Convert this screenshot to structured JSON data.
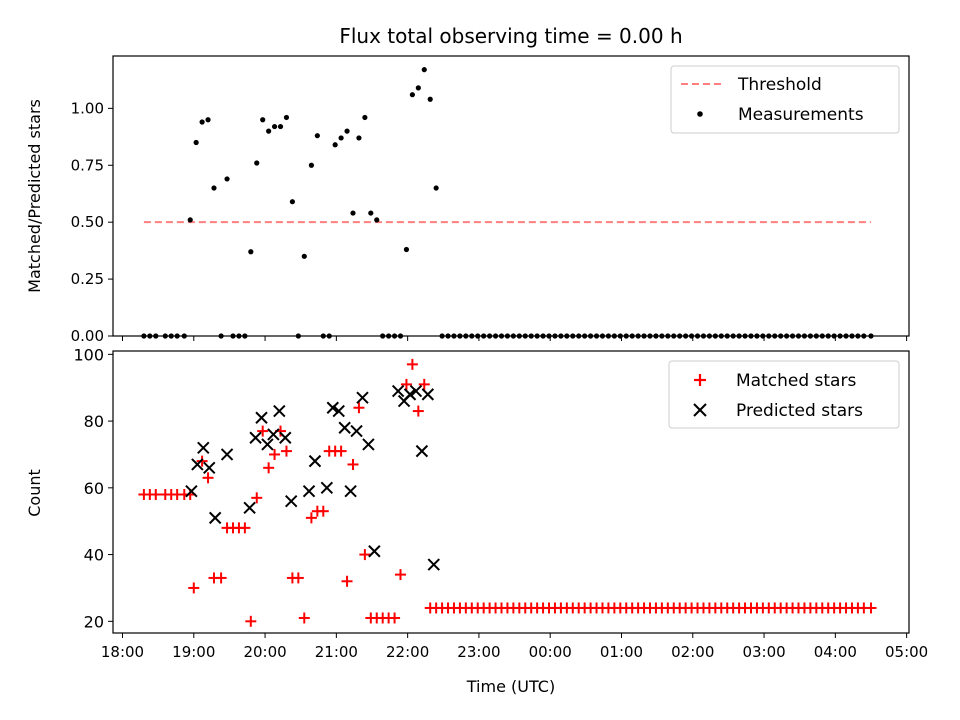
{
  "chart_data": [
    {
      "type": "scatter",
      "title": "Flux total observing time = 0.00 h",
      "xlabel": "",
      "ylabel": "Matched/Predicted stars",
      "xlim": [
        "17:52",
        "05:02"
      ],
      "ylim": [
        0.0,
        1.23
      ],
      "yticks": [
        0.0,
        0.25,
        0.5,
        0.75,
        1.0
      ],
      "ytick_labels": [
        "0.00",
        "0.25",
        "0.50",
        "0.75",
        "1.00"
      ],
      "grid": false,
      "legend_position": "top-right",
      "colors": {
        "threshold": "#ff7f7f",
        "measurements": "#000000"
      },
      "series": [
        {
          "name": "Threshold",
          "kind": "dashed-line",
          "color": "#ff7f7f",
          "x": [
            "18:18",
            "04:30"
          ],
          "y": [
            0.5,
            0.5
          ]
        },
        {
          "name": "Measurements",
          "kind": "dot",
          "color": "#000000",
          "x": [
            "18:18",
            "18:23",
            "18:28",
            "18:36",
            "18:41",
            "18:46",
            "18:52",
            "18:57",
            "19:02",
            "19:07",
            "19:12",
            "19:17",
            "19:23",
            "19:28",
            "19:33",
            "19:38",
            "19:43",
            "19:48",
            "19:53",
            "19:58",
            "20:03",
            "20:08",
            "20:13",
            "20:18",
            "20:23",
            "20:28",
            "20:33",
            "20:39",
            "20:44",
            "20:49",
            "20:54",
            "20:59",
            "21:04",
            "21:09",
            "21:14",
            "21:19",
            "21:24",
            "21:29",
            "21:34",
            "21:39",
            "21:44",
            "21:49",
            "21:54",
            "21:59",
            "22:04",
            "22:09",
            "22:14",
            "22:19",
            "22:24",
            "22:29",
            "22:34",
            "22:39",
            "22:44",
            "22:49",
            "22:54",
            "22:59",
            "23:04",
            "23:09",
            "23:14",
            "23:19",
            "23:24",
            "23:29",
            "23:34",
            "23:39",
            "23:44",
            "23:49",
            "23:54",
            "23:59",
            "00:04",
            "00:09",
            "00:14",
            "00:19",
            "00:24",
            "00:29",
            "00:34",
            "00:39",
            "00:44",
            "00:49",
            "00:54",
            "00:59",
            "01:04",
            "01:09",
            "01:14",
            "01:19",
            "01:24",
            "01:29",
            "01:34",
            "01:39",
            "01:44",
            "01:49",
            "01:54",
            "01:59",
            "02:04",
            "02:09",
            "02:14",
            "02:19",
            "02:24",
            "02:29",
            "02:34",
            "02:39",
            "02:44",
            "02:49",
            "02:54",
            "02:59",
            "03:04",
            "03:09",
            "03:14",
            "03:19",
            "03:24",
            "03:29",
            "03:34",
            "03:39",
            "03:44",
            "03:49",
            "03:54",
            "03:59",
            "04:04",
            "04:09",
            "04:14",
            "04:19",
            "04:24",
            "04:30"
          ],
          "y": [
            0,
            0,
            0,
            0,
            0,
            0,
            0,
            0.51,
            0.85,
            0.94,
            0.95,
            0.65,
            0,
            0.69,
            0,
            0,
            0,
            0.37,
            0.76,
            0.95,
            0.9,
            0.92,
            0.92,
            0.96,
            0.59,
            0,
            0.35,
            0.75,
            0.88,
            0,
            0,
            0.84,
            0.87,
            0.9,
            0.54,
            0.87,
            0.96,
            0.54,
            0.51,
            0,
            0,
            0,
            0,
            0.38,
            1.06,
            1.09,
            1.17,
            1.04,
            0.65,
            0,
            0,
            0,
            0,
            0,
            0,
            0,
            0,
            0,
            0,
            0,
            0,
            0,
            0,
            0,
            0,
            0,
            0,
            0,
            0,
            0,
            0,
            0,
            0,
            0,
            0,
            0,
            0,
            0,
            0,
            0,
            0,
            0,
            0,
            0,
            0,
            0,
            0,
            0,
            0,
            0,
            0,
            0,
            0,
            0,
            0,
            0,
            0,
            0,
            0,
            0,
            0,
            0,
            0,
            0,
            0,
            0,
            0,
            0,
            0,
            0,
            0,
            0,
            0,
            0,
            0,
            0,
            0,
            0,
            0,
            0,
            0,
            0
          ]
        }
      ]
    },
    {
      "type": "scatter",
      "title": "",
      "xlabel": "Time (UTC)",
      "ylabel": "Count",
      "xlim": [
        "17:52",
        "05:02"
      ],
      "ylim": [
        16.5,
        101
      ],
      "yticks": [
        20,
        40,
        60,
        80,
        100
      ],
      "ytick_labels": [
        "20",
        "40",
        "60",
        "80",
        "100"
      ],
      "xticks": [
        "18:00",
        "19:00",
        "20:00",
        "21:00",
        "22:00",
        "23:00",
        "00:00",
        "01:00",
        "02:00",
        "03:00",
        "04:00",
        "05:00"
      ],
      "grid": false,
      "legend_position": "top-right",
      "colors": {
        "matched": "#ff0000",
        "predicted": "#000000"
      },
      "series": [
        {
          "name": "Matched stars",
          "marker": "plus",
          "color": "#ff0000",
          "x": [
            "18:18",
            "18:23",
            "18:28",
            "18:36",
            "18:41",
            "18:46",
            "18:52",
            "18:57",
            "19:00",
            "19:07",
            "19:12",
            "19:17",
            "19:23",
            "19:28",
            "19:33",
            "19:38",
            "19:43",
            "19:48",
            "19:53",
            "19:58",
            "20:03",
            "20:08",
            "20:13",
            "20:18",
            "20:23",
            "20:28",
            "20:33",
            "20:39",
            "20:44",
            "20:49",
            "20:54",
            "20:59",
            "21:04",
            "21:09",
            "21:14",
            "21:19",
            "21:24",
            "21:29",
            "21:34",
            "21:39",
            "21:44",
            "21:49",
            "21:54",
            "21:59",
            "22:04",
            "22:09",
            "22:14",
            "22:19",
            "22:24",
            "22:29",
            "22:34",
            "22:39",
            "22:44",
            "22:49",
            "22:54",
            "22:59",
            "23:04",
            "23:09",
            "23:14",
            "23:19",
            "23:24",
            "23:29",
            "23:34",
            "23:39",
            "23:44",
            "23:49",
            "23:54",
            "23:59",
            "00:04",
            "00:09",
            "00:14",
            "00:19",
            "00:24",
            "00:29",
            "00:34",
            "00:39",
            "00:44",
            "00:49",
            "00:54",
            "00:59",
            "01:04",
            "01:09",
            "01:14",
            "01:19",
            "01:24",
            "01:29",
            "01:34",
            "01:39",
            "01:44",
            "01:49",
            "01:54",
            "01:59",
            "02:04",
            "02:09",
            "02:14",
            "02:19",
            "02:24",
            "02:29",
            "02:34",
            "02:39",
            "02:44",
            "02:49",
            "02:54",
            "02:59",
            "03:04",
            "03:09",
            "03:14",
            "03:19",
            "03:24",
            "03:29",
            "03:34",
            "03:39",
            "03:44",
            "03:49",
            "03:54",
            "03:59",
            "04:04",
            "04:09",
            "04:14",
            "04:19",
            "04:24",
            "04:30"
          ],
          "y": [
            58,
            58,
            58,
            58,
            58,
            58,
            58,
            58,
            30,
            68,
            63,
            33,
            33,
            48,
            48,
            48,
            48,
            20,
            57,
            77,
            66,
            70,
            77,
            71,
            33,
            33,
            21,
            51,
            53,
            53,
            71,
            71,
            71,
            32,
            67,
            84,
            40,
            21,
            21,
            21,
            21,
            21,
            34,
            91,
            97,
            83,
            91,
            24,
            24,
            24,
            24,
            24,
            24,
            24,
            24,
            24,
            24,
            24,
            24,
            24,
            24,
            24,
            24,
            24,
            24,
            24,
            24,
            24,
            24,
            24,
            24,
            24,
            24,
            24,
            24,
            24,
            24,
            24,
            24,
            24,
            24,
            24,
            24,
            24,
            24,
            24,
            24,
            24,
            24,
            24,
            24,
            24,
            24,
            24,
            24,
            24,
            24,
            24,
            24,
            24,
            24,
            24,
            24,
            24,
            24,
            24,
            24,
            24,
            24,
            24,
            24,
            24,
            24,
            24,
            24,
            24,
            24,
            24,
            24,
            24,
            24,
            24
          ]
        },
        {
          "name": "Predicted stars",
          "marker": "x",
          "color": "#000000",
          "x": [
            "18:58",
            "19:03",
            "19:08",
            "19:13",
            "19:18",
            "19:28",
            "19:47",
            "19:52",
            "19:57",
            "20:02",
            "20:07",
            "20:12",
            "20:17",
            "20:22",
            "20:37",
            "20:42",
            "20:52",
            "20:57",
            "21:02",
            "21:07",
            "21:12",
            "21:17",
            "21:22",
            "21:27",
            "21:32",
            "21:52",
            "21:57",
            "22:02",
            "22:07",
            "22:12",
            "22:17",
            "22:22"
          ],
          "y": [
            59,
            67,
            72,
            66,
            51,
            70,
            54,
            75,
            81,
            73,
            76,
            83,
            75,
            56,
            59,
            68,
            60,
            84,
            83,
            78,
            59,
            77,
            87,
            73,
            41,
            89,
            86,
            88,
            89,
            71,
            88,
            37
          ]
        }
      ]
    }
  ]
}
